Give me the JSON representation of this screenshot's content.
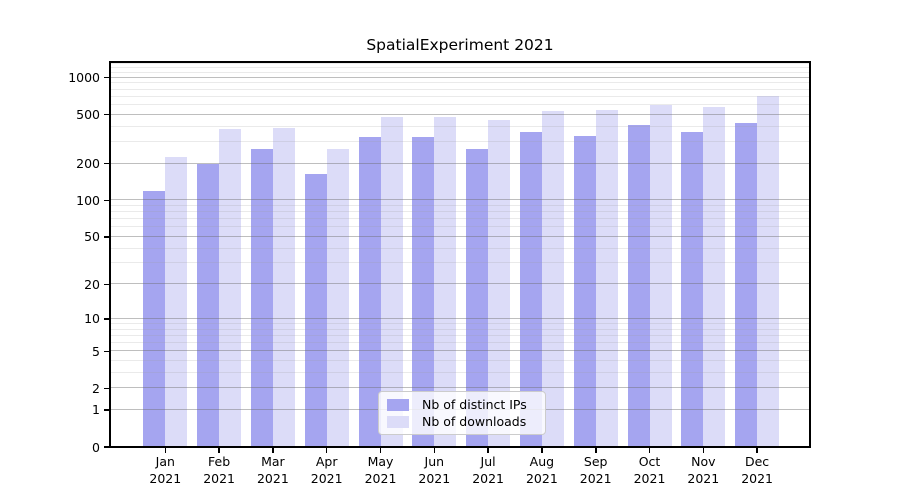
{
  "chart_data": {
    "type": "bar",
    "title": "SpatialExperiment 2021",
    "categories": [
      "Jan 2021",
      "Feb 2021",
      "Mar 2021",
      "Apr 2021",
      "May 2021",
      "Jun 2021",
      "Jul 2021",
      "Aug 2021",
      "Sep 2021",
      "Oct 2021",
      "Nov 2021",
      "Dec 2021"
    ],
    "series": [
      {
        "name": "Nb of distinct IPs",
        "color": "#a5a5f0",
        "values": [
          120,
          200,
          265,
          165,
          330,
          330,
          265,
          360,
          335,
          415,
          360,
          430
        ]
      },
      {
        "name": "Nb of downloads",
        "color": "#dcdcf8",
        "values": [
          225,
          380,
          390,
          265,
          475,
          480,
          455,
          535,
          550,
          605,
          580,
          710
        ]
      }
    ],
    "xlabel": "",
    "ylabel": "",
    "yscale": "log1p",
    "y_ticks": [
      0,
      1,
      2,
      5,
      10,
      20,
      50,
      100,
      200,
      500,
      1000
    ],
    "ylim": [
      0,
      1340
    ],
    "grid": "both",
    "legend_position": "lower center"
  }
}
